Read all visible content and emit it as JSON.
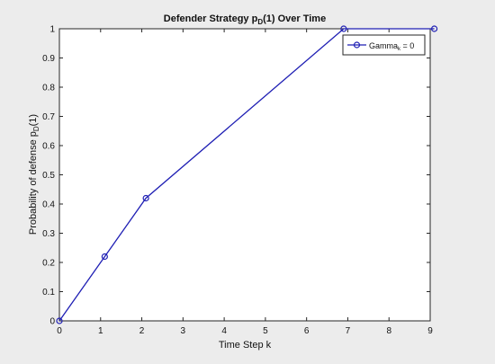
{
  "chart_data": {
    "type": "line",
    "title": "Defender Strategy p",
    "title_sub": "D",
    "title_rest": "(1) Over Time",
    "xlabel": "Time Step k",
    "ylabel": "Probability of defense p",
    "ylabel_sub": "D",
    "ylabel_rest": "(1)",
    "xlim": [
      0,
      9
    ],
    "ylim": [
      0,
      1
    ],
    "xticks": [
      "0",
      "1",
      "2",
      "3",
      "4",
      "5",
      "6",
      "7",
      "8",
      "9"
    ],
    "yticks": [
      "0",
      "0.1",
      "0.2",
      "0.3",
      "0.4",
      "0.5",
      "0.6",
      "0.7",
      "0.8",
      "0.9",
      "1"
    ],
    "grid": false,
    "legend_position": "top-right",
    "series": [
      {
        "name": "Gamma",
        "name_sub": "k",
        "name_rest": " = 0",
        "color": "#1f1fb4",
        "marker": "circle",
        "x": [
          0,
          1.1,
          2.1,
          6.9,
          9.1
        ],
        "y": [
          0,
          0.22,
          0.42,
          1.0,
          1.0
        ]
      }
    ]
  }
}
